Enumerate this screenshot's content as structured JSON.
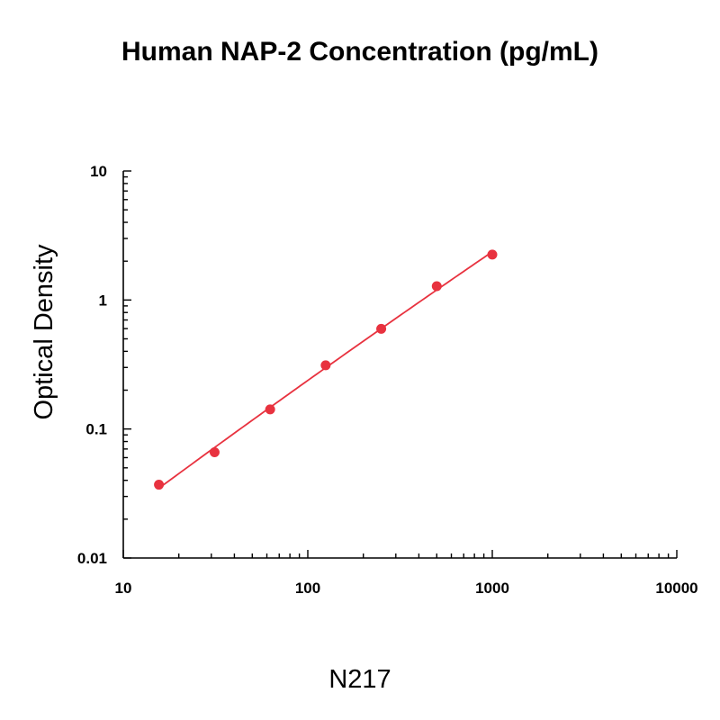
{
  "chart_data": {
    "type": "scatter",
    "title": "Human NAP-2 Concentration (pg/mL)",
    "xlabel": "",
    "ylabel": "Optical Density",
    "caption": "N217",
    "x_scale": "log",
    "y_scale": "log",
    "xlim": [
      10,
      10000
    ],
    "ylim": [
      0.01,
      10
    ],
    "x_tick_labels": [
      "10",
      "100",
      "1000",
      "10000"
    ],
    "y_tick_labels": [
      "0.01",
      "0.1",
      "1",
      "10"
    ],
    "grid": false,
    "legend": "none",
    "series": [
      {
        "x": [
          15.6,
          31.25,
          62.5,
          125,
          250,
          500,
          1000
        ],
        "y": [
          0.037,
          0.066,
          0.142,
          0.312,
          0.598,
          1.28,
          2.25
        ],
        "color": "#e8323f",
        "fit_curve": true
      }
    ]
  }
}
